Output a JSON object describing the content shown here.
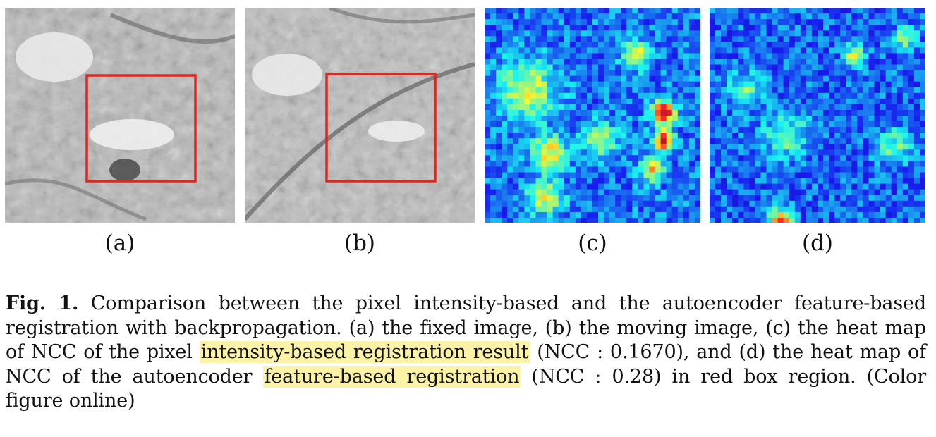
{
  "panels": [
    {
      "id": "a",
      "label": "(a)"
    },
    {
      "id": "b",
      "label": "(b)"
    },
    {
      "id": "c",
      "label": "(c)"
    },
    {
      "id": "d",
      "label": "(d)"
    }
  ],
  "colors": {
    "box": "#e0271f",
    "highlight": "#fdf3a6",
    "heat_low": "#2c3e9e",
    "heat_high": "#c8171b"
  },
  "caption": {
    "label": "Fig. 1.",
    "part1": " Comparison between the pixel intensity-based and the autoencoder feature-based registration with backpropagation. (a) the fixed image, (b) the moving image, (c) the heat map of NCC of the pixel ",
    "highlight1": "intensity-based registration result",
    "part2": " (NCC : 0.1670), and (d) the heat map of NCC of the autoencoder ",
    "highlight2": "feature-based registration",
    "part3": " (NCC : 0.28) in red box region. (Color figure online)"
  }
}
